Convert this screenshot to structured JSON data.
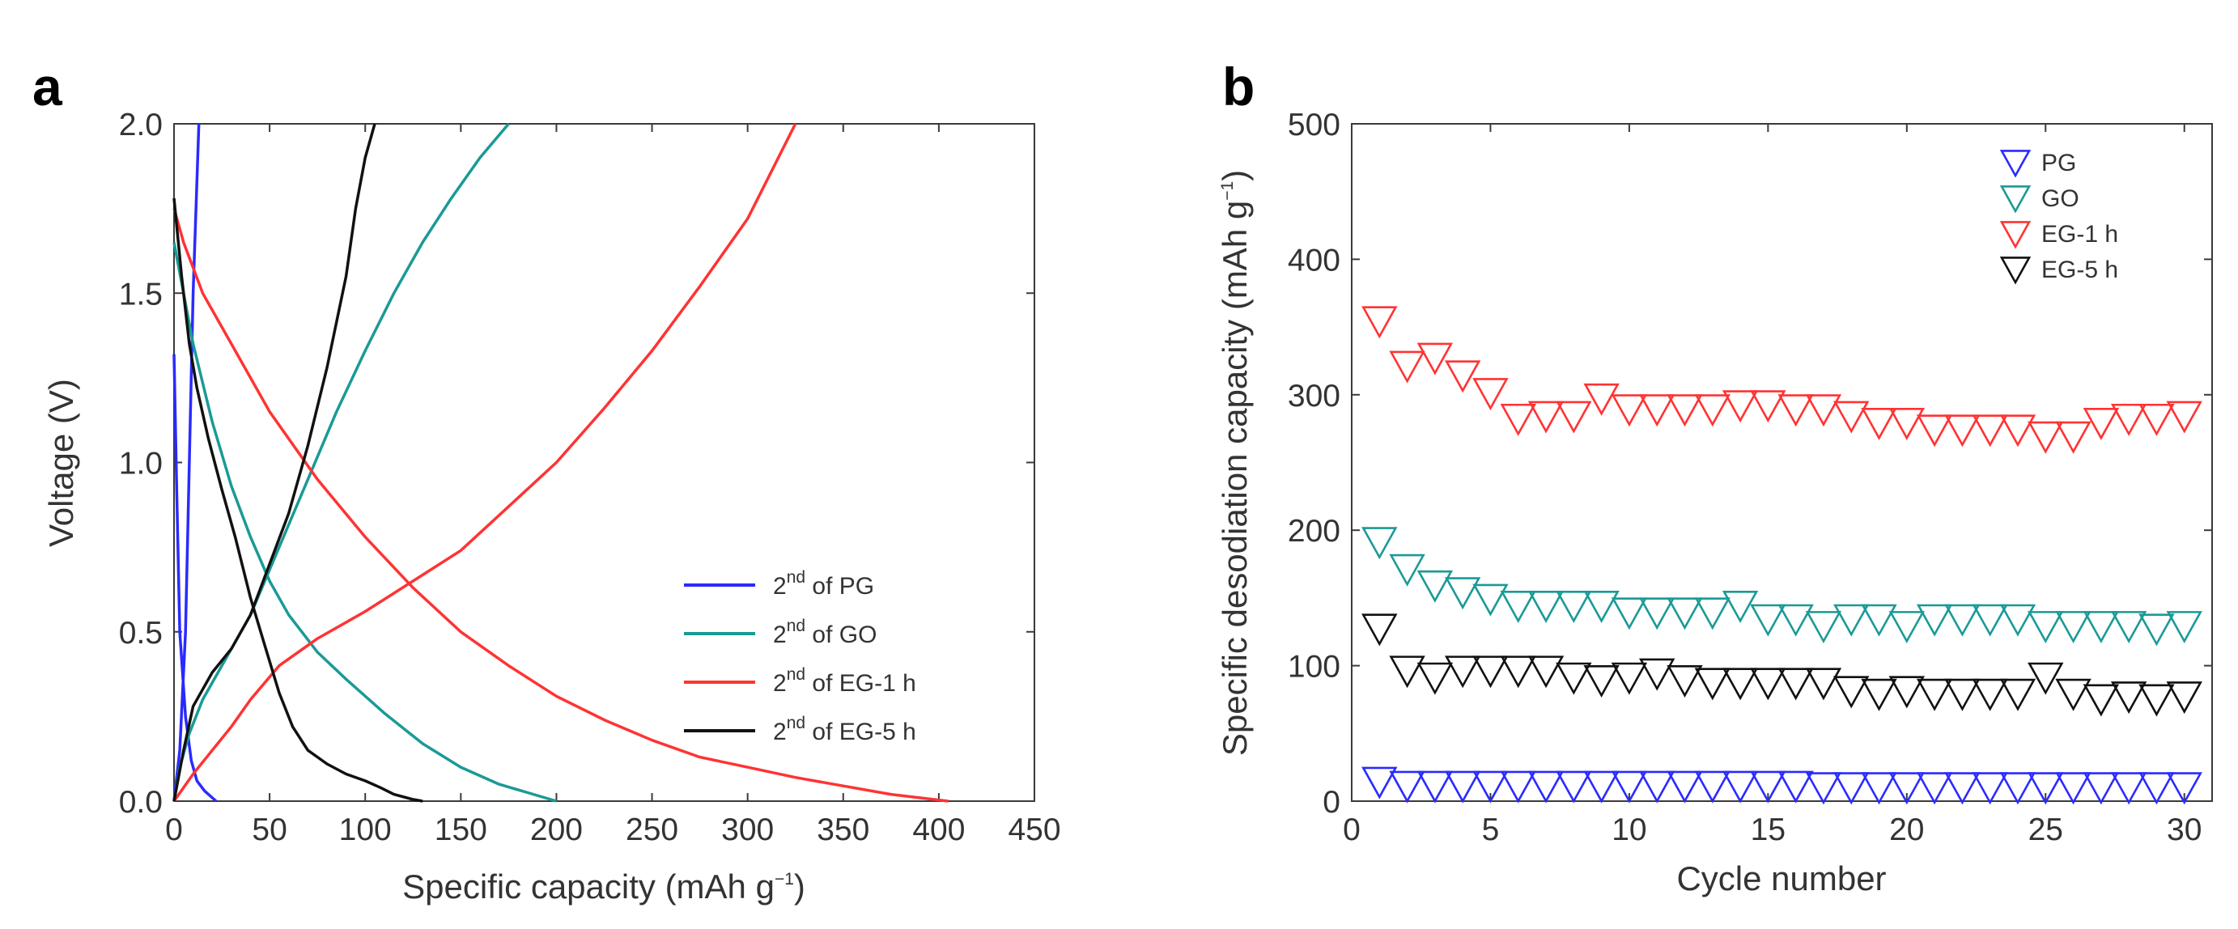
{
  "chart_data": [
    {
      "panel": "a",
      "type": "line",
      "title": "",
      "xlabel": "Specific capacity (mAh g",
      "xlabel_sup": "−1",
      "xlabel_end": ")",
      "ylabel": "Voltage (V)",
      "xlim": [
        0,
        450
      ],
      "ylim": [
        0,
        2.0
      ],
      "xticks": [
        0,
        50,
        100,
        150,
        200,
        250,
        300,
        350,
        400,
        450
      ],
      "yticks": [
        0.0,
        0.5,
        1.0,
        1.5,
        2.0
      ],
      "legend_position": "bottom-right",
      "series": [
        {
          "name": "2nd of PG",
          "legend_sup": "nd",
          "legend_prefix": "2",
          "legend_suffix": " of PG",
          "color": "#2a2aff",
          "discharge": [
            [
              0,
              1.32
            ],
            [
              1.5,
              0.9
            ],
            [
              3,
              0.5
            ],
            [
              6,
              0.25
            ],
            [
              9,
              0.12
            ],
            [
              12,
              0.06
            ],
            [
              16,
              0.03
            ],
            [
              22,
              0.0
            ]
          ],
          "charge": [
            [
              0,
              0.0
            ],
            [
              3,
              0.15
            ],
            [
              6,
              0.5
            ],
            [
              8,
              1.0
            ],
            [
              10,
              1.5
            ],
            [
              13,
              2.0
            ]
          ]
        },
        {
          "name": "2nd of GO",
          "legend_sup": "nd",
          "legend_prefix": "2",
          "legend_suffix": " of GO",
          "color": "#1a9a96",
          "discharge": [
            [
              0,
              1.65
            ],
            [
              5,
              1.5
            ],
            [
              10,
              1.35
            ],
            [
              20,
              1.12
            ],
            [
              30,
              0.93
            ],
            [
              40,
              0.78
            ],
            [
              50,
              0.65
            ],
            [
              60,
              0.55
            ],
            [
              75,
              0.44
            ],
            [
              90,
              0.36
            ],
            [
              110,
              0.26
            ],
            [
              130,
              0.17
            ],
            [
              150,
              0.1
            ],
            [
              170,
              0.05
            ],
            [
              185,
              0.025
            ],
            [
              200,
              0.0
            ]
          ],
          "charge": [
            [
              0,
              0.0
            ],
            [
              3,
              0.1
            ],
            [
              8,
              0.2
            ],
            [
              15,
              0.3
            ],
            [
              25,
              0.4
            ],
            [
              40,
              0.55
            ],
            [
              55,
              0.75
            ],
            [
              70,
              0.95
            ],
            [
              85,
              1.15
            ],
            [
              100,
              1.33
            ],
            [
              115,
              1.5
            ],
            [
              130,
              1.65
            ],
            [
              145,
              1.78
            ],
            [
              160,
              1.9
            ],
            [
              175,
              2.0
            ]
          ]
        },
        {
          "name": "2nd of EG-1 h",
          "legend_sup": "nd",
          "legend_prefix": "2",
          "legend_suffix": " of EG-1 h",
          "color": "#ff3333",
          "discharge": [
            [
              0,
              1.75
            ],
            [
              5,
              1.65
            ],
            [
              15,
              1.5
            ],
            [
              30,
              1.35
            ],
            [
              50,
              1.15
            ],
            [
              75,
              0.95
            ],
            [
              100,
              0.78
            ],
            [
              125,
              0.63
            ],
            [
              150,
              0.5
            ],
            [
              175,
              0.4
            ],
            [
              200,
              0.31
            ],
            [
              225,
              0.24
            ],
            [
              250,
              0.18
            ],
            [
              275,
              0.13
            ],
            [
              300,
              0.1
            ],
            [
              325,
              0.07
            ],
            [
              350,
              0.045
            ],
            [
              375,
              0.02
            ],
            [
              405,
              0.0
            ]
          ],
          "charge": [
            [
              0,
              0.0
            ],
            [
              10,
              0.08
            ],
            [
              20,
              0.15
            ],
            [
              30,
              0.22
            ],
            [
              40,
              0.3
            ],
            [
              55,
              0.4
            ],
            [
              75,
              0.48
            ],
            [
              100,
              0.56
            ],
            [
              125,
              0.65
            ],
            [
              150,
              0.74
            ],
            [
              175,
              0.87
            ],
            [
              200,
              1.0
            ],
            [
              225,
              1.16
            ],
            [
              250,
              1.33
            ],
            [
              275,
              1.52
            ],
            [
              300,
              1.72
            ],
            [
              325,
              2.0
            ]
          ]
        },
        {
          "name": "2nd of EG-5 h",
          "legend_sup": "nd",
          "legend_prefix": "2",
          "legend_suffix": " of EG-5 h",
          "color": "#111111",
          "discharge": [
            [
              0,
              1.78
            ],
            [
              4,
              1.55
            ],
            [
              8,
              1.35
            ],
            [
              12,
              1.22
            ],
            [
              18,
              1.07
            ],
            [
              25,
              0.92
            ],
            [
              32,
              0.78
            ],
            [
              40,
              0.6
            ],
            [
              48,
              0.45
            ],
            [
              55,
              0.32
            ],
            [
              62,
              0.22
            ],
            [
              70,
              0.15
            ],
            [
              80,
              0.11
            ],
            [
              90,
              0.08
            ],
            [
              100,
              0.06
            ],
            [
              108,
              0.04
            ],
            [
              115,
              0.02
            ],
            [
              125,
              0.005
            ],
            [
              130,
              0.0
            ]
          ],
          "charge": [
            [
              0,
              0.0
            ],
            [
              5,
              0.15
            ],
            [
              10,
              0.28
            ],
            [
              20,
              0.38
            ],
            [
              30,
              0.45
            ],
            [
              40,
              0.55
            ],
            [
              50,
              0.7
            ],
            [
              60,
              0.85
            ],
            [
              70,
              1.05
            ],
            [
              80,
              1.28
            ],
            [
              90,
              1.55
            ],
            [
              95,
              1.75
            ],
            [
              100,
              1.9
            ],
            [
              105,
              2.0
            ]
          ]
        }
      ]
    },
    {
      "panel": "b",
      "type": "scatter",
      "title": "",
      "xlabel": "Cycle number",
      "ylabel": "Specific desodiation capacity (mAh g",
      "ylabel_sup": "−1",
      "ylabel_end": ")",
      "xlim": [
        0,
        31
      ],
      "ylim": [
        0,
        500
      ],
      "xticks": [
        0,
        5,
        10,
        15,
        20,
        25,
        30
      ],
      "yticks": [
        0,
        100,
        200,
        300,
        400,
        500
      ],
      "legend_position": "top-right",
      "marker": "open-down-triangle",
      "x": [
        1,
        2,
        3,
        4,
        5,
        6,
        7,
        8,
        9,
        10,
        11,
        12,
        13,
        14,
        15,
        16,
        17,
        18,
        19,
        20,
        21,
        22,
        23,
        24,
        25,
        26,
        27,
        28,
        29,
        30
      ],
      "series": [
        {
          "name": "PG",
          "color": "#2a2aff",
          "values": [
            15,
            12,
            12,
            12,
            12,
            12,
            12,
            12,
            12,
            12,
            12,
            12,
            12,
            12,
            12,
            12,
            11,
            11,
            11,
            11,
            11,
            11,
            11,
            11,
            11,
            11,
            11,
            11,
            11,
            11
          ]
        },
        {
          "name": "GO",
          "color": "#1a9a96",
          "values": [
            192,
            172,
            160,
            155,
            150,
            145,
            145,
            145,
            145,
            140,
            140,
            140,
            140,
            145,
            135,
            135,
            130,
            135,
            135,
            130,
            135,
            135,
            135,
            135,
            130,
            130,
            130,
            130,
            128,
            130
          ]
        },
        {
          "name": "EG-1 h",
          "color": "#ff3333",
          "values": [
            355,
            322,
            328,
            315,
            302,
            283,
            285,
            285,
            298,
            290,
            290,
            290,
            290,
            293,
            293,
            290,
            290,
            285,
            280,
            280,
            275,
            275,
            275,
            275,
            270,
            270,
            280,
            283,
            283,
            285
          ]
        },
        {
          "name": "EG-5 h",
          "color": "#111111",
          "values": [
            128,
            97,
            92,
            97,
            97,
            97,
            97,
            92,
            90,
            92,
            95,
            90,
            88,
            88,
            88,
            88,
            88,
            82,
            80,
            82,
            80,
            80,
            80,
            80,
            92,
            80,
            76,
            78,
            76,
            78
          ]
        }
      ]
    }
  ],
  "panel_labels": [
    "a",
    "b"
  ]
}
